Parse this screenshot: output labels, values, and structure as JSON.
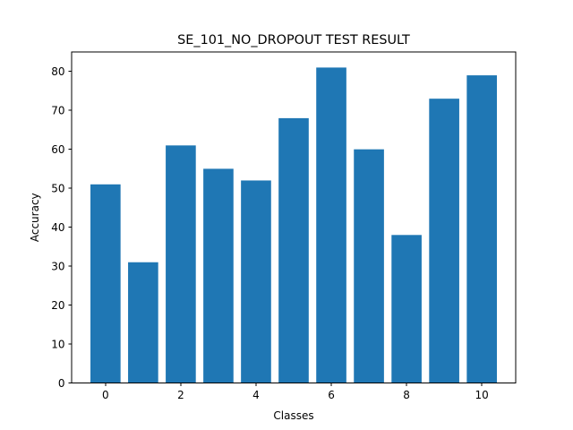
{
  "chart_data": {
    "type": "bar",
    "title": "SE_101_NO_DROPOUT TEST RESULT",
    "xlabel": "Classes",
    "ylabel": "Accuracy",
    "x": [
      0,
      1,
      2,
      3,
      4,
      5,
      6,
      7,
      8,
      9,
      10
    ],
    "values": [
      51,
      31,
      61,
      55,
      52,
      68,
      81,
      60,
      38,
      73,
      79
    ],
    "xlim": [
      -0.9,
      10.9
    ],
    "ylim": [
      0,
      85
    ],
    "xticks": [
      0,
      2,
      4,
      6,
      8,
      10
    ],
    "yticks": [
      0,
      10,
      20,
      30,
      40,
      50,
      60,
      70,
      80
    ],
    "bar_color": "#1f77b4",
    "grid": false,
    "legend": "none"
  }
}
